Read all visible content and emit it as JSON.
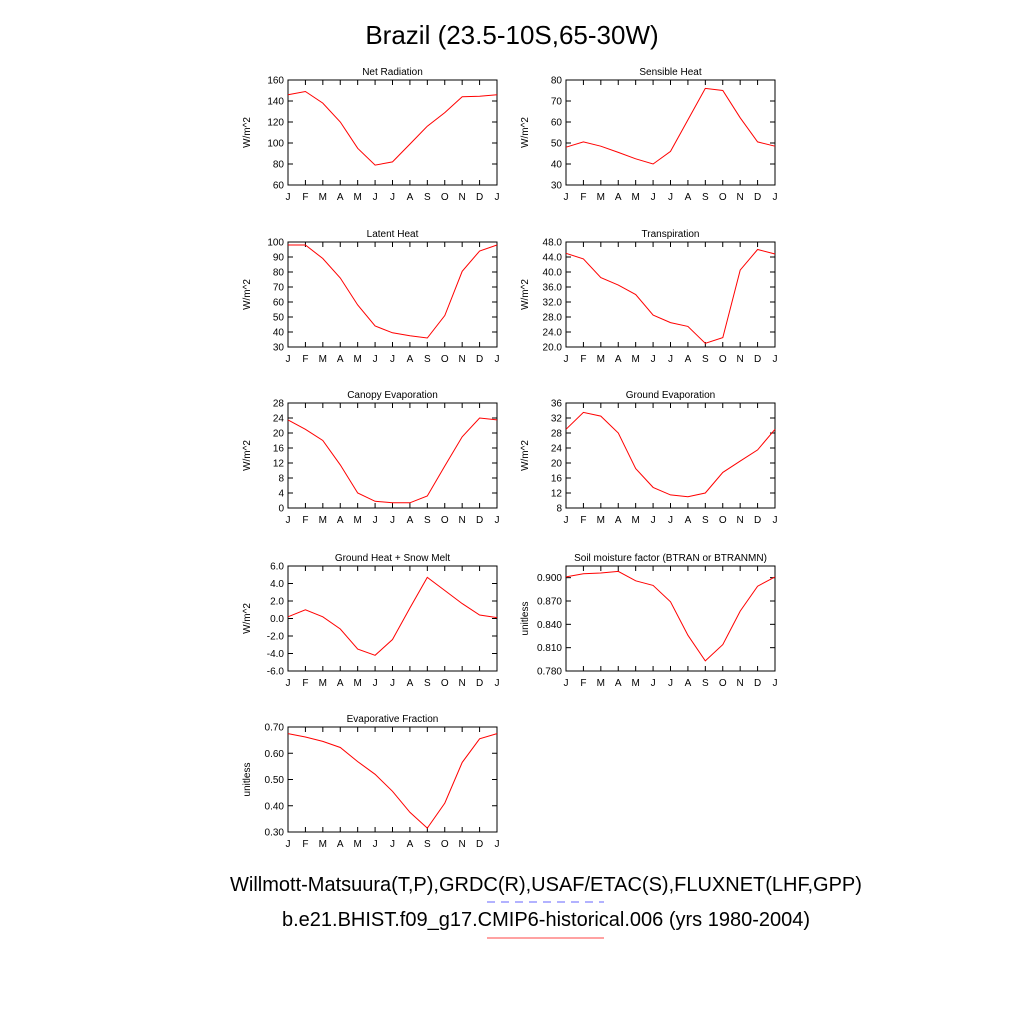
{
  "title": "Brazil (23.5-10S,65-30W)",
  "legend": [
    {
      "text": "Willmott-Matsuura(T,P),GRDC(R),USAF/ETAC(S),FLUXNET(LHF,GPP)",
      "color": "#6666ff",
      "dash": true
    },
    {
      "text": "b.e21.BHIST.f09_g17.CMIP6-historical.006 (yrs 1980-2004)",
      "color": "#ff4444",
      "dash": false
    }
  ],
  "colors": {
    "series": "#ff0000"
  },
  "chart_data": [
    {
      "type": "line",
      "title": "Net Radiation",
      "ylabel": "W/m^2",
      "x": [
        "J",
        "F",
        "M",
        "A",
        "M",
        "J",
        "J",
        "A",
        "S",
        "O",
        "N",
        "D",
        "J"
      ],
      "ylim": [
        60,
        160
      ],
      "yticks": [
        "60",
        "80",
        "100",
        "120",
        "140",
        "160"
      ],
      "values": [
        146,
        149,
        138,
        120,
        95,
        79,
        82,
        99,
        116,
        129,
        144,
        144.5,
        146
      ]
    },
    {
      "type": "line",
      "title": "Sensible Heat",
      "ylabel": "W/m^2",
      "x": [
        "J",
        "F",
        "M",
        "A",
        "M",
        "J",
        "J",
        "A",
        "S",
        "O",
        "N",
        "D",
        "J"
      ],
      "ylim": [
        30,
        80
      ],
      "yticks": [
        "30",
        "40",
        "50",
        "60",
        "70",
        "80"
      ],
      "values": [
        48,
        50.5,
        48.5,
        45.5,
        42.5,
        40,
        46,
        61,
        76,
        75,
        62,
        50.5,
        48.5
      ]
    },
    {
      "type": "line",
      "title": "Latent Heat",
      "ylabel": "W/m^2",
      "x": [
        "J",
        "F",
        "M",
        "A",
        "M",
        "J",
        "J",
        "A",
        "S",
        "O",
        "N",
        "D",
        "J"
      ],
      "ylim": [
        30,
        100
      ],
      "yticks": [
        "30",
        "40",
        "50",
        "60",
        "70",
        "80",
        "90",
        "100"
      ],
      "values": [
        98,
        98,
        89,
        76,
        58,
        44,
        39.5,
        37.5,
        36,
        51,
        80.5,
        94,
        98
      ]
    },
    {
      "type": "line",
      "title": "Transpiration",
      "ylabel": "W/m^2",
      "x": [
        "J",
        "F",
        "M",
        "A",
        "M",
        "J",
        "J",
        "A",
        "S",
        "O",
        "N",
        "D",
        "J"
      ],
      "ylim": [
        20,
        48
      ],
      "yticks": [
        "20.0",
        "24.0",
        "28.0",
        "32.0",
        "36.0",
        "40.0",
        "44.0",
        "48.0"
      ],
      "values": [
        45,
        43.5,
        38.5,
        36.5,
        34,
        28.5,
        26.5,
        25.5,
        21,
        22.5,
        40.5,
        46,
        44.8
      ]
    },
    {
      "type": "line",
      "title": "Canopy Evaporation",
      "ylabel": "W/m^2",
      "x": [
        "J",
        "F",
        "M",
        "A",
        "M",
        "J",
        "J",
        "A",
        "S",
        "O",
        "N",
        "D",
        "J"
      ],
      "ylim": [
        0,
        28
      ],
      "yticks": [
        "0",
        "4",
        "8",
        "12",
        "16",
        "20",
        "24",
        "28"
      ],
      "values": [
        23.5,
        21,
        18,
        11.5,
        4,
        1.8,
        1.4,
        1.4,
        3.2,
        11.2,
        19,
        24,
        23.5
      ]
    },
    {
      "type": "line",
      "title": "Ground Evaporation",
      "ylabel": "W/m^2",
      "x": [
        "J",
        "F",
        "M",
        "A",
        "M",
        "J",
        "J",
        "A",
        "S",
        "O",
        "N",
        "D",
        "J"
      ],
      "ylim": [
        8,
        36
      ],
      "yticks": [
        "8",
        "12",
        "16",
        "20",
        "24",
        "28",
        "32",
        "36"
      ],
      "values": [
        29,
        33.5,
        32.5,
        28,
        18.5,
        13.5,
        11.5,
        11,
        12,
        17.5,
        20.5,
        23.5,
        29
      ]
    },
    {
      "type": "line",
      "title": "Ground Heat + Snow Melt",
      "ylabel": "W/m^2",
      "x": [
        "J",
        "F",
        "M",
        "A",
        "M",
        "J",
        "J",
        "A",
        "S",
        "O",
        "N",
        "D",
        "J"
      ],
      "ylim": [
        -6,
        6
      ],
      "yticks": [
        "-6.0",
        "-4.0",
        "-2.0",
        "0.0",
        "2.0",
        "4.0",
        "6.0"
      ],
      "values": [
        0.2,
        1.0,
        0.2,
        -1.2,
        -3.5,
        -4.2,
        -2.4,
        1.2,
        4.7,
        3.2,
        1.7,
        0.4,
        0.1
      ]
    },
    {
      "type": "line",
      "title": "Soil moisture factor (BTRAN or BTRANMN)",
      "ylabel": "unitless",
      "x": [
        "J",
        "F",
        "M",
        "A",
        "M",
        "J",
        "J",
        "A",
        "S",
        "O",
        "N",
        "D",
        "J"
      ],
      "ylim": [
        0.78,
        0.915
      ],
      "yticks": [
        "0.780",
        "0.810",
        "0.840",
        "0.870",
        "0.900"
      ],
      "values": [
        0.901,
        0.905,
        0.906,
        0.908,
        0.896,
        0.89,
        0.869,
        0.826,
        0.793,
        0.814,
        0.857,
        0.889,
        0.901
      ]
    },
    {
      "type": "line",
      "title": "Evaporative Fraction",
      "ylabel": "unitless",
      "x": [
        "J",
        "F",
        "M",
        "A",
        "M",
        "J",
        "J",
        "A",
        "S",
        "O",
        "N",
        "D",
        "J"
      ],
      "ylim": [
        0.3,
        0.7
      ],
      "yticks": [
        "0.30",
        "0.40",
        "0.50",
        "0.60",
        "0.70"
      ],
      "values": [
        0.675,
        0.662,
        0.645,
        0.622,
        0.568,
        0.52,
        0.455,
        0.375,
        0.315,
        0.41,
        0.565,
        0.655,
        0.675
      ]
    }
  ]
}
